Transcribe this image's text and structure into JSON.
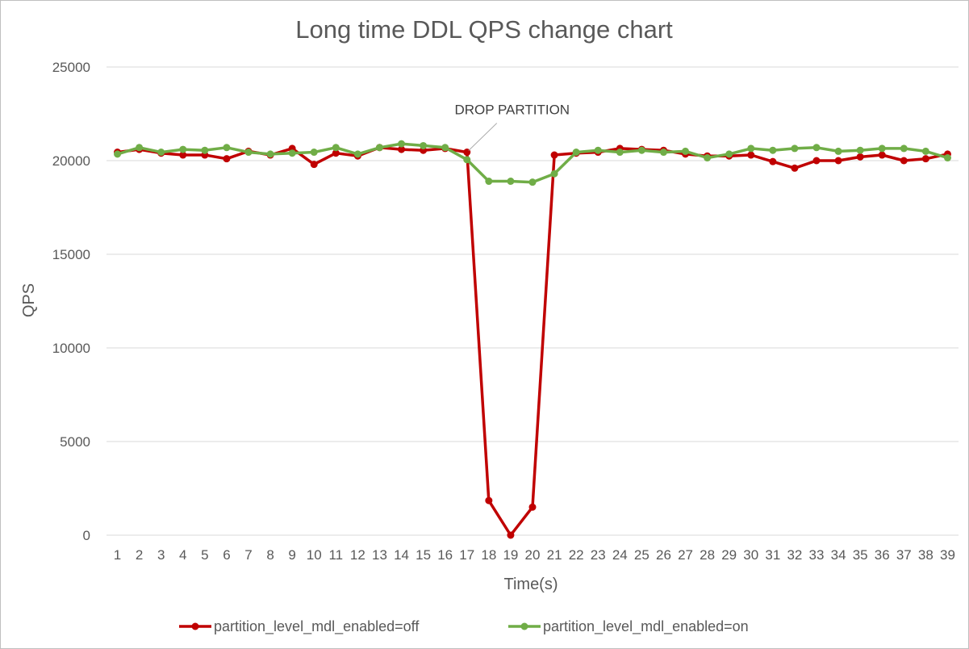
{
  "chart_data": {
    "type": "line",
    "title": "Long time DDL QPS change chart",
    "xlabel": "Time(s)",
    "ylabel": "QPS",
    "ylim": [
      0,
      25000
    ],
    "yticks": [
      0,
      5000,
      10000,
      15000,
      20000,
      25000
    ],
    "grid": true,
    "legend": "bottom",
    "categories": [
      "1",
      "2",
      "3",
      "4",
      "5",
      "6",
      "7",
      "8",
      "9",
      "10",
      "11",
      "12",
      "13",
      "14",
      "15",
      "16",
      "17",
      "18",
      "19",
      "20",
      "21",
      "22",
      "23",
      "24",
      "25",
      "26",
      "27",
      "28",
      "29",
      "30",
      "31",
      "32",
      "33",
      "34",
      "35",
      "36",
      "37",
      "38",
      "39"
    ],
    "series": [
      {
        "name": "partition_level_mdl_enabled=off",
        "color": "#c00000",
        "values": [
          20450,
          20600,
          20400,
          20300,
          20300,
          20100,
          20500,
          20300,
          20650,
          19800,
          20400,
          20250,
          20700,
          20600,
          20550,
          20650,
          20450,
          1850,
          0,
          1500,
          20300,
          20400,
          20450,
          20650,
          20600,
          20550,
          20350,
          20250,
          20250,
          20300,
          19950,
          19600,
          20000,
          20000,
          20200,
          20300,
          20000,
          20100,
          20350
        ]
      },
      {
        "name": "partition_level_mdl_enabled=on",
        "color": "#70ad47",
        "values": [
          20350,
          20700,
          20450,
          20600,
          20550,
          20700,
          20450,
          20350,
          20400,
          20450,
          20700,
          20350,
          20700,
          20900,
          20800,
          20700,
          20050,
          18900,
          18900,
          18850,
          19300,
          20450,
          20550,
          20450,
          20550,
          20450,
          20500,
          20150,
          20350,
          20650,
          20550,
          20650,
          20700,
          20500,
          20550,
          20650,
          20650,
          20500,
          20150
        ]
      }
    ],
    "annotations": [
      {
        "text": "DROP PARTITION",
        "x": "17",
        "y": 20450
      }
    ]
  }
}
